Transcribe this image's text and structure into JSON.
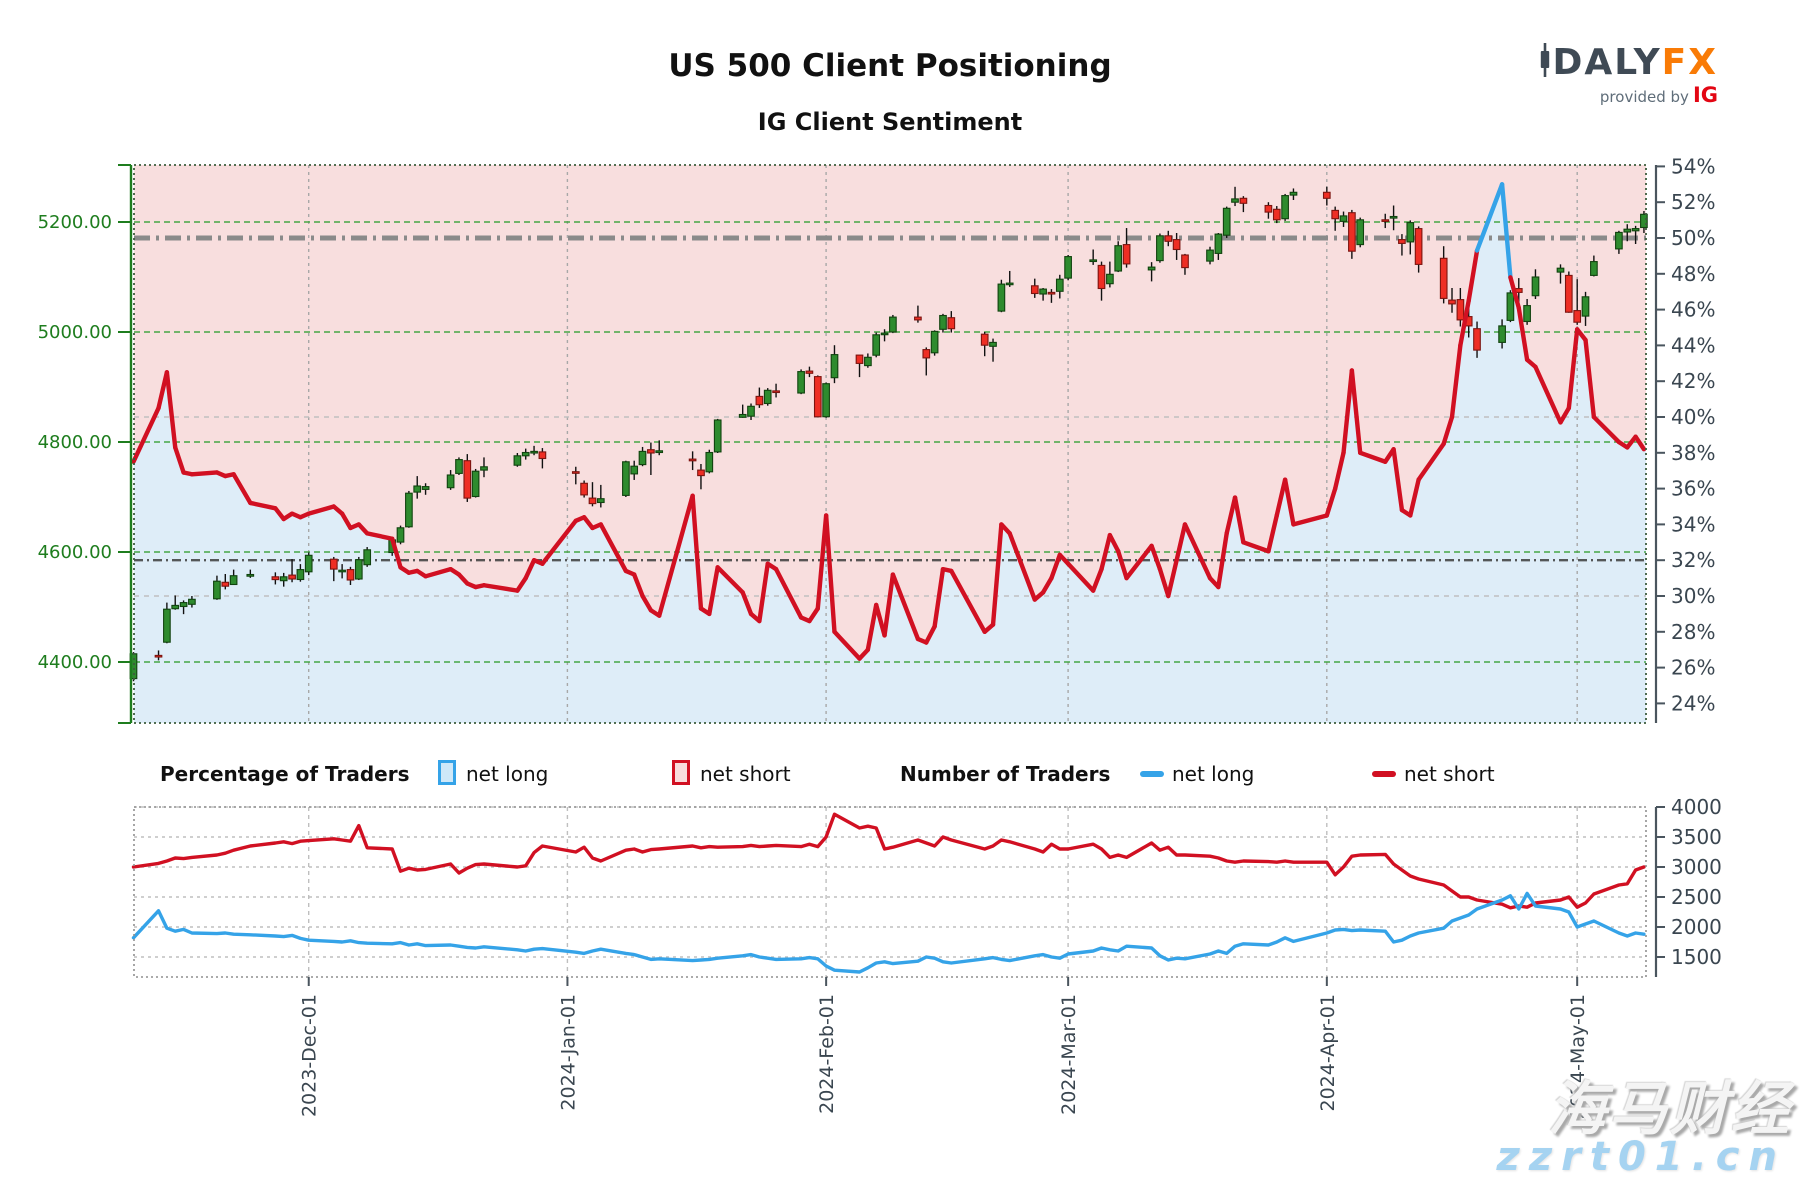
{
  "title": "US 500 Client Positioning",
  "subtitle": "IG Client Sentiment",
  "logo": {
    "da": "DA",
    "ly": "LY",
    "fx": "FX",
    "provided_by": "provided by",
    "ig": "IG"
  },
  "watermark": {
    "line1": "海马财经",
    "line2": "zzrt01.cn"
  },
  "legend": {
    "pct_title": "Percentage of Traders",
    "pct_long": "net long",
    "pct_short": "net short",
    "num_title": "Number of Traders",
    "num_long": "net long",
    "num_short": "net short"
  },
  "colors": {
    "sentiment_red": "#d11022",
    "sentiment_blue": "#35a3e8",
    "candle_up": "#2e8b2e",
    "candle_up_edge": "#11430f",
    "candle_down": "#ee2e24",
    "candle_down_edge": "#7c1410",
    "wick": "#111111",
    "bg_pink": "#f8dede",
    "bg_blue": "#deedf8",
    "axis_green": "#1e7d1e",
    "axis_slate": "#4a555e",
    "label_slate": "#3a4650",
    "grid_green": "#3da33d",
    "grid_gray": "#a8a8a8",
    "grid_light": "#bfbfbf",
    "ref_gray": "#8a8a8a",
    "ref_dark": "#3d3d3d",
    "logo_slate": "#3f4a55",
    "logo_orange": "#f97b06",
    "ig_red": "#e30613"
  },
  "chart_data": {
    "type": [
      "candlestick",
      "line"
    ],
    "title": "US 500 Client Positioning — IG Client Sentiment",
    "price_axis": {
      "ticks": [
        5200,
        5000,
        4800,
        4600,
        4400
      ],
      "labels": [
        "5200.00",
        "5000.00",
        "4800.00",
        "4600.00",
        "4400.00"
      ]
    },
    "pct_axis": {
      "ticks": [
        54,
        52,
        50,
        48,
        46,
        44,
        42,
        40,
        38,
        36,
        34,
        32,
        30,
        28,
        26,
        24
      ],
      "labels": [
        "54%",
        "52%",
        "50%",
        "48%",
        "46%",
        "44%",
        "42%",
        "40%",
        "38%",
        "36%",
        "34%",
        "32%",
        "30%",
        "28%",
        "26%",
        "24%"
      ]
    },
    "count_axis": {
      "ticks": [
        4000,
        3500,
        3000,
        2500,
        2000,
        1500
      ],
      "labels": [
        "4000",
        "3500",
        "3000",
        "2500",
        "2000",
        "1500"
      ]
    },
    "months": [
      {
        "label": "2023-Dec-01",
        "day": 21
      },
      {
        "label": "2024-Jan-01",
        "day": 52
      },
      {
        "label": "2024-Feb-01",
        "day": 83
      },
      {
        "label": "2024-Mar-01",
        "day": 112
      },
      {
        "label": "2024-Apr-01",
        "day": 143
      },
      {
        "label": "2024-May-01",
        "day": 173
      }
    ],
    "ref_lines": {
      "heavy_dashdot_pct": 50,
      "dark_dashdot_pct": 32,
      "light_dashed_pct": [
        40,
        30
      ]
    },
    "sentiment_rule": "line shows percent of traders net-long; drawn blue where >= ~50%, red otherwise; pink fill above line, light blue fill below",
    "row_fields": [
      "day_offset_from_first_bar",
      "open",
      "high",
      "low",
      "close",
      "pct_net_long",
      "num_net_long_traders",
      "num_net_short_traders"
    ],
    "rows": [
      [
        0,
        4370,
        4418,
        4365,
        4415,
        37.5,
        1820,
        3000
      ],
      [
        3,
        4412,
        4421,
        4403,
        4411,
        40.5,
        2270,
        3060
      ],
      [
        4,
        4436,
        4508,
        4434,
        4496,
        42.5,
        1980,
        3100
      ],
      [
        5,
        4497,
        4521,
        4495,
        4503,
        38.3,
        1930,
        3150
      ],
      [
        6,
        4501,
        4512,
        4487,
        4508,
        36.9,
        1960,
        3140
      ],
      [
        7,
        4505,
        4520,
        4499,
        4514,
        36.8,
        1900,
        3160
      ],
      [
        10,
        4515,
        4557,
        4513,
        4547,
        36.9,
        1890,
        3200
      ],
      [
        11,
        4545,
        4560,
        4532,
        4538,
        36.7,
        1900,
        3230
      ],
      [
        12,
        4541,
        4568,
        4540,
        4557,
        36.8,
        1880,
        3280
      ],
      [
        14,
        4556,
        4568,
        4553,
        4559,
        35.2,
        1870,
        3350
      ],
      [
        17,
        4555,
        4563,
        4541,
        4550,
        34.9,
        1850,
        3400
      ],
      [
        18,
        4548,
        4562,
        4537,
        4555,
        34.3,
        1840,
        3420
      ],
      [
        19,
        4558,
        4587,
        4545,
        4551,
        34.6,
        1860,
        3390
      ],
      [
        20,
        4550,
        4578,
        4546,
        4568,
        34.4,
        1810,
        3430
      ],
      [
        21,
        4564,
        4599,
        4558,
        4594,
        34.6,
        1780,
        3440
      ],
      [
        24,
        4587,
        4591,
        4547,
        4569,
        35.0,
        1760,
        3470
      ],
      [
        25,
        4564,
        4578,
        4552,
        4567,
        34.6,
        1750,
        3450
      ],
      [
        26,
        4568,
        4573,
        4540,
        4549,
        33.8,
        1770,
        3430
      ],
      [
        27,
        4551,
        4591,
        4549,
        4586,
        34.0,
        1740,
        3690
      ],
      [
        28,
        4577,
        4609,
        4573,
        4604,
        33.5,
        1730,
        3320
      ],
      [
        31,
        4599,
        4625,
        4593,
        4622,
        33.2,
        1720,
        3300
      ],
      [
        32,
        4618,
        4648,
        4614,
        4644,
        31.6,
        1740,
        2930
      ],
      [
        33,
        4646,
        4711,
        4644,
        4707,
        31.3,
        1700,
        2980
      ],
      [
        34,
        4709,
        4738,
        4697,
        4720,
        31.4,
        1720,
        2950
      ],
      [
        35,
        4714,
        4725,
        4704,
        4719,
        31.1,
        1690,
        2960
      ],
      [
        38,
        4717,
        4749,
        4713,
        4740,
        31.5,
        1700,
        3050
      ],
      [
        39,
        4743,
        4772,
        4740,
        4768,
        31.2,
        1680,
        2900
      ],
      [
        40,
        4766,
        4778,
        4691,
        4698,
        30.7,
        1660,
        2980
      ],
      [
        41,
        4701,
        4751,
        4699,
        4747,
        30.5,
        1650,
        3040
      ],
      [
        42,
        4749,
        4772,
        4736,
        4755,
        30.6,
        1670,
        3050
      ],
      [
        46,
        4758,
        4780,
        4755,
        4775,
        30.3,
        1620,
        3000
      ],
      [
        47,
        4775,
        4788,
        4768,
        4781,
        31.0,
        1600,
        3020
      ],
      [
        48,
        4783,
        4793,
        4776,
        4783,
        32.0,
        1630,
        3240
      ],
      [
        49,
        4782,
        4789,
        4752,
        4770,
        31.8,
        1640,
        3350
      ],
      [
        53,
        4746,
        4755,
        4723,
        4743,
        34.2,
        1580,
        3250
      ],
      [
        54,
        4725,
        4730,
        4699,
        4704,
        34.4,
        1560,
        3330
      ],
      [
        55,
        4698,
        4727,
        4683,
        4688,
        33.8,
        1600,
        3150
      ],
      [
        56,
        4690,
        4722,
        4681,
        4697,
        34.0,
        1630,
        3100
      ],
      [
        59,
        4703,
        4766,
        4700,
        4764,
        31.4,
        1560,
        3280
      ],
      [
        60,
        4742,
        4766,
        4731,
        4756,
        31.2,
        1540,
        3300
      ],
      [
        61,
        4759,
        4791,
        4756,
        4783,
        30.0,
        1500,
        3250
      ],
      [
        62,
        4786,
        4799,
        4740,
        4780,
        29.2,
        1460,
        3290
      ],
      [
        63,
        4781,
        4803,
        4776,
        4784,
        28.9,
        1470,
        3300
      ],
      [
        67,
        4769,
        4783,
        4749,
        4766,
        35.6,
        1440,
        3350
      ],
      [
        68,
        4749,
        4760,
        4714,
        4739,
        29.3,
        1450,
        3320
      ],
      [
        69,
        4746,
        4786,
        4743,
        4781,
        29.0,
        1460,
        3340
      ],
      [
        70,
        4782,
        4842,
        4780,
        4840,
        31.6,
        1480,
        3330
      ],
      [
        73,
        4845,
        4868,
        4844,
        4850,
        30.2,
        1520,
        3340
      ],
      [
        74,
        4847,
        4870,
        4840,
        4865,
        29.0,
        1540,
        3360
      ],
      [
        75,
        4883,
        4899,
        4862,
        4868,
        28.6,
        1500,
        3340
      ],
      [
        76,
        4870,
        4898,
        4866,
        4894,
        31.8,
        1480,
        3350
      ],
      [
        77,
        4893,
        4906,
        4881,
        4891,
        31.5,
        1460,
        3360
      ],
      [
        80,
        4889,
        4932,
        4887,
        4928,
        28.8,
        1470,
        3340
      ],
      [
        81,
        4929,
        4937,
        4918,
        4925,
        28.6,
        1490,
        3380
      ],
      [
        82,
        4919,
        4921,
        4845,
        4846,
        29.3,
        1470,
        3340
      ],
      [
        83,
        4846,
        4908,
        4844,
        4906,
        34.5,
        1350,
        3500
      ],
      [
        84,
        4917,
        4976,
        4907,
        4959,
        28.0,
        1280,
        3880
      ],
      [
        87,
        4958,
        4958,
        4918,
        4943,
        26.5,
        1250,
        3650
      ],
      [
        88,
        4939,
        4961,
        4935,
        4954,
        27.0,
        1320,
        3680
      ],
      [
        89,
        4958,
        4999,
        4954,
        4995,
        29.5,
        1400,
        3650
      ],
      [
        90,
        4996,
        5005,
        4983,
        4998,
        27.8,
        1420,
        3300
      ],
      [
        91,
        5000,
        5031,
        4998,
        5027,
        31.2,
        1390,
        3330
      ],
      [
        94,
        5027,
        5048,
        5017,
        5022,
        27.6,
        1430,
        3450
      ],
      [
        95,
        4968,
        4972,
        4921,
        4953,
        27.4,
        1500,
        3400
      ],
      [
        96,
        4962,
        5003,
        4957,
        5001,
        28.3,
        1480,
        3350
      ],
      [
        97,
        5005,
        5033,
        4999,
        5030,
        31.5,
        1420,
        3500
      ],
      [
        98,
        5026,
        5038,
        4999,
        5006,
        31.4,
        1400,
        3450
      ],
      [
        102,
        4996,
        5000,
        4956,
        4976,
        28.0,
        1470,
        3300
      ],
      [
        103,
        4974,
        4988,
        4946,
        4981,
        28.4,
        1490,
        3350
      ],
      [
        104,
        5038,
        5095,
        5036,
        5087,
        34.0,
        1460,
        3450
      ],
      [
        105,
        5087,
        5111,
        5082,
        5089,
        33.5,
        1440,
        3420
      ],
      [
        108,
        5084,
        5097,
        5062,
        5070,
        29.8,
        1520,
        3300
      ],
      [
        109,
        5069,
        5080,
        5057,
        5078,
        30.2,
        1540,
        3250
      ],
      [
        110,
        5072,
        5078,
        5053,
        5070,
        31.0,
        1500,
        3380
      ],
      [
        111,
        5074,
        5104,
        5061,
        5096,
        32.3,
        1480,
        3300
      ],
      [
        112,
        5098,
        5140,
        5094,
        5137,
        31.8,
        1550,
        3300
      ],
      [
        115,
        5131,
        5150,
        5122,
        5131,
        30.3,
        1600,
        3380
      ],
      [
        116,
        5121,
        5128,
        5057,
        5079,
        31.5,
        1650,
        3300
      ],
      [
        117,
        5088,
        5128,
        5081,
        5105,
        33.4,
        1620,
        3160
      ],
      [
        118,
        5111,
        5165,
        5109,
        5157,
        32.5,
        1600,
        3200
      ],
      [
        119,
        5159,
        5189,
        5117,
        5124,
        31.0,
        1680,
        3160
      ],
      [
        122,
        5113,
        5127,
        5092,
        5118,
        32.8,
        1650,
        3400
      ],
      [
        123,
        5130,
        5179,
        5126,
        5175,
        31.5,
        1520,
        3280
      ],
      [
        124,
        5175,
        5184,
        5156,
        5165,
        30.0,
        1450,
        3330
      ],
      [
        125,
        5168,
        5180,
        5131,
        5150,
        32.0,
        1480,
        3200
      ],
      [
        126,
        5140,
        5142,
        5104,
        5117,
        34.0,
        1470,
        3200
      ],
      [
        129,
        5129,
        5155,
        5123,
        5149,
        31.0,
        1550,
        3180
      ],
      [
        130,
        5143,
        5180,
        5131,
        5178,
        30.5,
        1600,
        3150
      ],
      [
        131,
        5176,
        5228,
        5171,
        5225,
        33.5,
        1560,
        3100
      ],
      [
        132,
        5236,
        5264,
        5229,
        5242,
        35.5,
        1680,
        3080
      ],
      [
        133,
        5243,
        5247,
        5218,
        5234,
        33.0,
        1720,
        3100
      ],
      [
        136,
        5230,
        5236,
        5206,
        5218,
        32.5,
        1700,
        3090
      ],
      [
        137,
        5223,
        5229,
        5198,
        5204,
        34.5,
        1750,
        3080
      ],
      [
        138,
        5206,
        5251,
        5202,
        5248,
        36.5,
        1820,
        3100
      ],
      [
        139,
        5249,
        5261,
        5240,
        5254,
        34.0,
        1760,
        3080
      ],
      [
        143,
        5254,
        5264,
        5230,
        5243,
        34.5,
        1900,
        3080
      ],
      [
        144,
        5221,
        5228,
        5184,
        5206,
        36.0,
        1950,
        2870
      ],
      [
        145,
        5201,
        5219,
        5191,
        5211,
        38.0,
        1960,
        3000
      ],
      [
        146,
        5217,
        5222,
        5133,
        5147,
        42.6,
        1940,
        3180
      ],
      [
        147,
        5159,
        5208,
        5154,
        5204,
        38.0,
        1950,
        3200
      ],
      [
        150,
        5204,
        5215,
        5189,
        5202,
        37.5,
        1930,
        3210
      ],
      [
        151,
        5210,
        5230,
        5185,
        5210,
        38.2,
        1750,
        3050
      ],
      [
        152,
        5168,
        5178,
        5139,
        5161,
        34.8,
        1780,
        2950
      ],
      [
        153,
        5164,
        5203,
        5141,
        5199,
        34.5,
        1850,
        2850
      ],
      [
        154,
        5188,
        5192,
        5108,
        5123,
        36.5,
        1900,
        2800
      ],
      [
        157,
        5134,
        5156,
        5052,
        5061,
        38.5,
        1980,
        2700
      ],
      [
        158,
        5058,
        5080,
        5035,
        5051,
        40.0,
        2100,
        2600
      ],
      [
        159,
        5059,
        5080,
        5010,
        5022,
        44.0,
        2150,
        2500
      ],
      [
        160,
        5028,
        5048,
        4990,
        5011,
        46.5,
        2200,
        2500
      ],
      [
        161,
        5006,
        5019,
        4953,
        4967,
        49.3,
        2300,
        2450
      ],
      [
        164,
        4981,
        5023,
        4970,
        5011,
        53.0,
        2450,
        2380
      ],
      [
        165,
        5021,
        5076,
        5018,
        5071,
        47.8,
        2520,
        2320
      ],
      [
        166,
        5079,
        5098,
        5052,
        5072,
        46.1,
        2300,
        2350
      ],
      [
        167,
        5019,
        5060,
        5013,
        5048,
        43.2,
        2560,
        2330
      ],
      [
        168,
        5066,
        5114,
        5060,
        5100,
        42.8,
        2350,
        2400
      ],
      [
        171,
        5109,
        5123,
        5088,
        5116,
        39.7,
        2300,
        2450
      ],
      [
        172,
        5103,
        5110,
        5035,
        5036,
        40.5,
        2250,
        2500
      ],
      [
        173,
        5039,
        5096,
        5013,
        5018,
        44.9,
        2000,
        2330
      ],
      [
        174,
        5029,
        5073,
        5011,
        5064,
        44.3,
        2050,
        2400
      ],
      [
        175,
        5103,
        5139,
        5101,
        5128,
        40.0,
        2100,
        2550
      ],
      [
        178,
        5151,
        5184,
        5142,
        5181,
        38.6,
        1900,
        2700
      ],
      [
        179,
        5182,
        5196,
        5165,
        5187,
        38.3,
        1850,
        2720
      ],
      [
        180,
        5184,
        5193,
        5160,
        5188,
        38.9,
        1900,
        2950
      ],
      [
        181,
        5190,
        5220,
        5180,
        5214,
        38.2,
        1880,
        3000
      ]
    ]
  }
}
